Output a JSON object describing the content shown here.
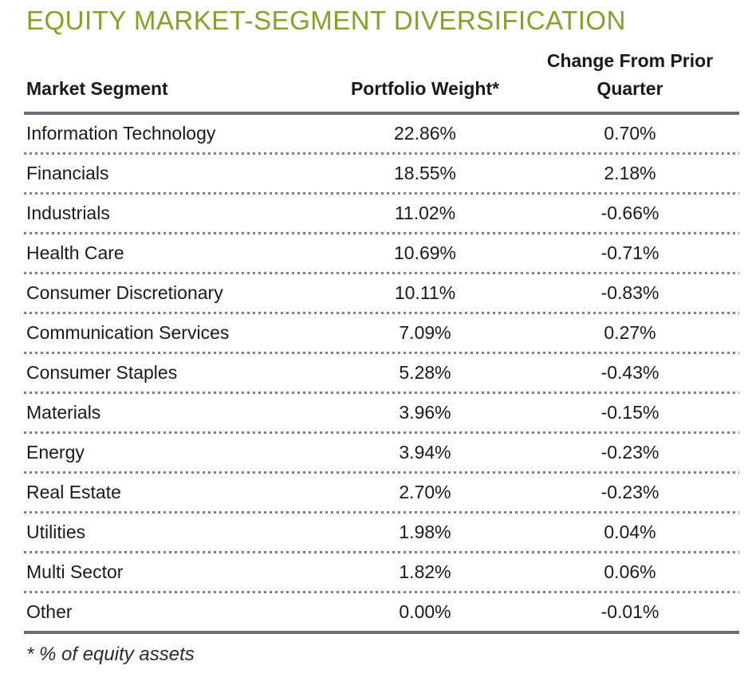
{
  "title": "EQUITY MARKET-SEGMENT DIVERSIFICATION",
  "colors": {
    "title_green": "#83A228",
    "rule_gray": "#6A6E73",
    "dot_gray": "#7D8186",
    "text_black": "#1A1A1A"
  },
  "table": {
    "headers": {
      "segment": "Market Segment",
      "weight": "Portfolio Weight*",
      "change": "Change From Prior Quarter"
    },
    "rows": [
      {
        "segment": "Information Technology",
        "weight": "22.86%",
        "change": "0.70%"
      },
      {
        "segment": "Financials",
        "weight": "18.55%",
        "change": "2.18%"
      },
      {
        "segment": "Industrials",
        "weight": "11.02%",
        "change": "-0.66%"
      },
      {
        "segment": "Health Care",
        "weight": "10.69%",
        "change": "-0.71%"
      },
      {
        "segment": "Consumer Discretionary",
        "weight": "10.11%",
        "change": "-0.83%"
      },
      {
        "segment": "Communication Services",
        "weight": "7.09%",
        "change": "0.27%"
      },
      {
        "segment": "Consumer Staples",
        "weight": "5.28%",
        "change": "-0.43%"
      },
      {
        "segment": "Materials",
        "weight": "3.96%",
        "change": "-0.15%"
      },
      {
        "segment": "Energy",
        "weight": "3.94%",
        "change": "-0.23%"
      },
      {
        "segment": "Real Estate",
        "weight": "2.70%",
        "change": "-0.23%"
      },
      {
        "segment": "Utilities",
        "weight": "1.98%",
        "change": "0.04%"
      },
      {
        "segment": "Multi Sector",
        "weight": "1.82%",
        "change": "0.06%"
      },
      {
        "segment": "Other",
        "weight": "0.00%",
        "change": "-0.01%"
      }
    ]
  },
  "footnote": "* % of equity assets"
}
